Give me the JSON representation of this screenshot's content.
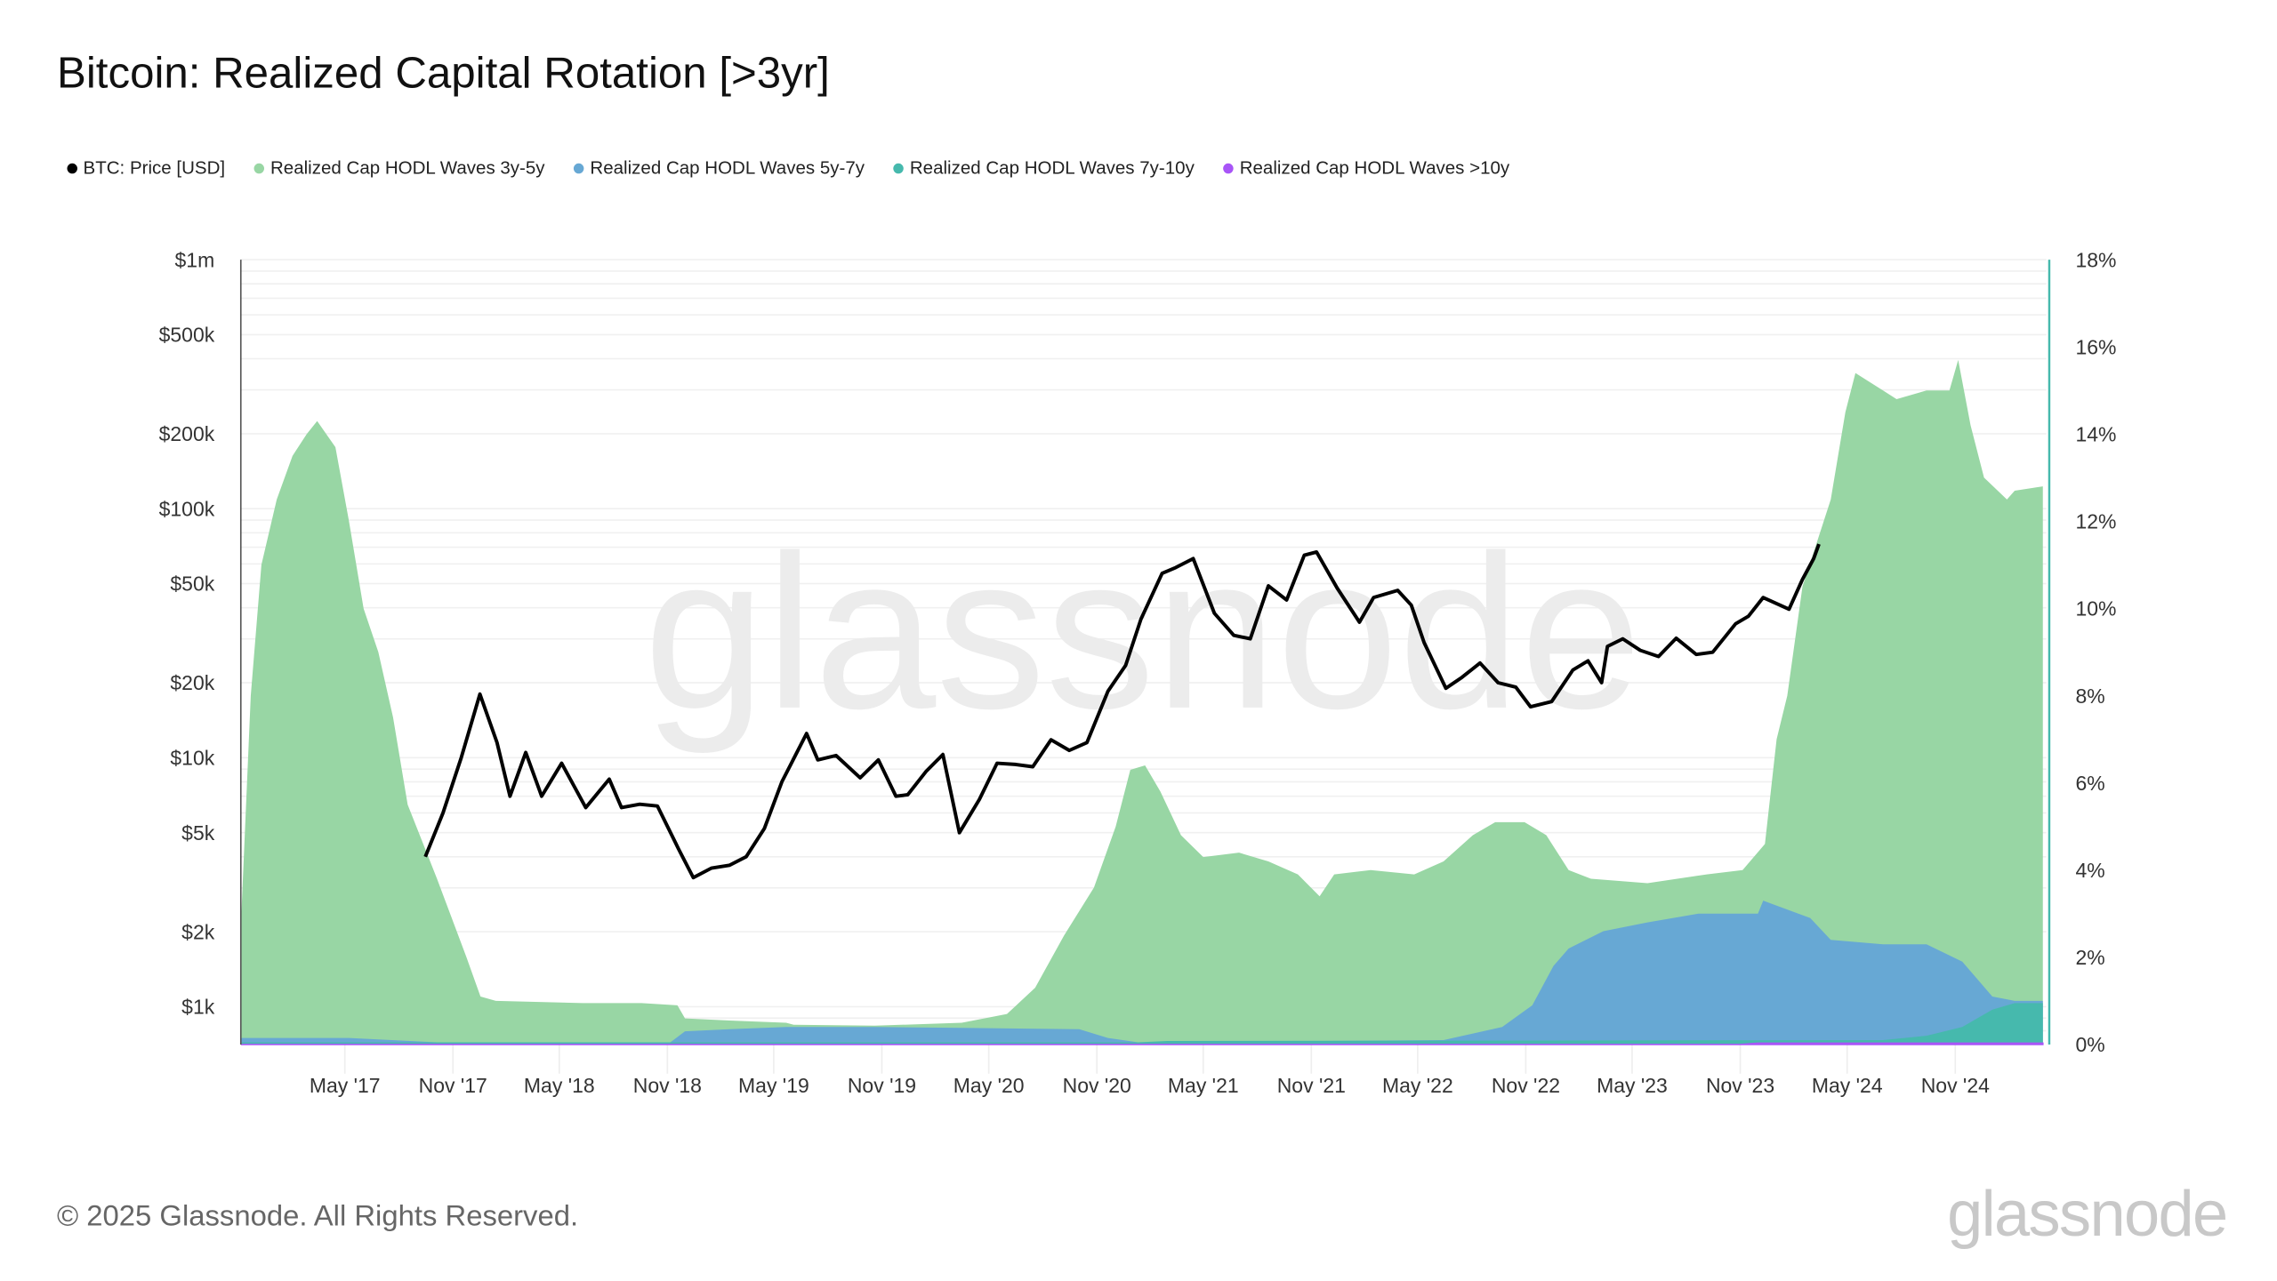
{
  "title": "Bitcoin: Realized Capital Rotation [>3yr]",
  "footer": "© 2025 Glassnode. All Rights Reserved.",
  "logo_text": "glassnode",
  "watermark": "glassnode",
  "chart_data": {
    "type": "area",
    "xlim": [
      "2016-11-05",
      "2025-04-05"
    ],
    "y_left": {
      "scale": "log",
      "range": [
        705,
        1000000
      ],
      "ticks": [
        1000000,
        500000,
        200000,
        100000,
        50000,
        20000,
        10000,
        5000,
        2000,
        1000
      ],
      "tick_labels": [
        "$1m",
        "$500k",
        "$200k",
        "$100k",
        "$50k",
        "$20k",
        "$10k",
        "$5k",
        "$2k",
        "$1k"
      ]
    },
    "y_right": {
      "scale": "linear",
      "range": [
        0,
        18
      ],
      "ticks": [
        18,
        16,
        14,
        12,
        10,
        8,
        6,
        4,
        2,
        0
      ],
      "tick_labels": [
        "18%",
        "16%",
        "14%",
        "12%",
        "10%",
        "8%",
        "6%",
        "4%",
        "2%",
        "0%"
      ]
    },
    "x_ticks": [
      {
        "date": "2017-05-01",
        "label": "May '17"
      },
      {
        "date": "2017-11-01",
        "label": "Nov '17"
      },
      {
        "date": "2018-05-01",
        "label": "May '18"
      },
      {
        "date": "2018-11-01",
        "label": "Nov '18"
      },
      {
        "date": "2019-05-01",
        "label": "May '19"
      },
      {
        "date": "2019-11-01",
        "label": "Nov '19"
      },
      {
        "date": "2020-05-01",
        "label": "May '20"
      },
      {
        "date": "2020-11-01",
        "label": "Nov '20"
      },
      {
        "date": "2021-05-01",
        "label": "May '21"
      },
      {
        "date": "2021-11-01",
        "label": "Nov '21"
      },
      {
        "date": "2022-05-01",
        "label": "May '22"
      },
      {
        "date": "2022-11-01",
        "label": "Nov '22"
      },
      {
        "date": "2023-05-01",
        "label": "May '23"
      },
      {
        "date": "2023-11-01",
        "label": "Nov '23"
      },
      {
        "date": "2024-05-01",
        "label": "May '24"
      },
      {
        "date": "2024-11-01",
        "label": "Nov '24"
      }
    ],
    "grid": true,
    "legend_placement": "top-left",
    "series": [
      {
        "name": "Realized Cap HODL Waves 3y-5y",
        "axis": "right",
        "color": "#98d6a4",
        "points": [
          [
            "2016-11-05",
            2.7
          ],
          [
            "2016-11-22",
            8
          ],
          [
            "2016-12-10",
            11
          ],
          [
            "2017-01-05",
            12.5
          ],
          [
            "2017-02-01",
            13.5
          ],
          [
            "2017-02-25",
            14
          ],
          [
            "2017-03-15",
            14.3
          ],
          [
            "2017-04-15",
            13.7
          ],
          [
            "2017-05-08",
            12
          ],
          [
            "2017-06-02",
            10
          ],
          [
            "2017-06-27",
            9
          ],
          [
            "2017-07-22",
            7.5
          ],
          [
            "2017-08-16",
            5.5
          ],
          [
            "2017-10-05",
            3.8
          ],
          [
            "2017-11-24",
            2
          ],
          [
            "2017-12-18",
            1.1
          ],
          [
            "2018-01-13",
            1.0
          ],
          [
            "2018-06-10",
            0.95
          ],
          [
            "2018-09-18",
            0.95
          ],
          [
            "2018-11-18",
            0.9
          ],
          [
            "2018-12-01",
            0.6
          ],
          [
            "2019-02-15",
            0.55
          ],
          [
            "2019-05-22",
            0.5
          ],
          [
            "2019-06-04",
            0.45
          ],
          [
            "2019-10-20",
            0.43
          ],
          [
            "2020-03-16",
            0.5
          ],
          [
            "2020-06-01",
            0.7
          ],
          [
            "2020-07-19",
            1.3
          ],
          [
            "2020-09-06",
            2.5
          ],
          [
            "2020-10-27",
            3.6
          ],
          [
            "2020-12-03",
            5.0
          ],
          [
            "2020-12-28",
            6.3
          ],
          [
            "2021-01-22",
            6.4
          ],
          [
            "2021-02-17",
            5.8
          ],
          [
            "2021-03-24",
            4.8
          ],
          [
            "2021-05-01",
            4.3
          ],
          [
            "2021-07-01",
            4.4
          ],
          [
            "2021-08-20",
            4.2
          ],
          [
            "2021-10-09",
            3.9
          ],
          [
            "2021-11-15",
            3.4
          ],
          [
            "2021-12-10",
            3.9
          ],
          [
            "2022-02-10",
            4.0
          ],
          [
            "2022-04-25",
            3.9
          ],
          [
            "2022-06-14",
            4.2
          ],
          [
            "2022-08-03",
            4.8
          ],
          [
            "2022-09-10",
            5.1
          ],
          [
            "2022-10-30",
            5.1
          ],
          [
            "2022-12-06",
            4.8
          ],
          [
            "2023-01-13",
            4.0
          ],
          [
            "2023-02-20",
            3.8
          ],
          [
            "2023-05-27",
            3.7
          ],
          [
            "2023-09-05",
            3.9
          ],
          [
            "2023-11-05",
            4.0
          ],
          [
            "2023-12-13",
            4.6
          ],
          [
            "2024-01-02",
            7.0
          ],
          [
            "2024-01-20",
            8.0
          ],
          [
            "2024-02-15",
            10.5
          ],
          [
            "2024-03-10",
            11.5
          ],
          [
            "2024-04-03",
            12.5
          ],
          [
            "2024-04-28",
            14.5
          ],
          [
            "2024-05-15",
            15.4
          ],
          [
            "2024-07-01",
            15.0
          ],
          [
            "2024-07-24",
            14.8
          ],
          [
            "2024-09-13",
            15.0
          ],
          [
            "2024-10-22",
            15.0
          ],
          [
            "2024-11-06",
            15.7
          ],
          [
            "2024-11-27",
            14.2
          ],
          [
            "2024-12-20",
            13.0
          ],
          [
            "2025-01-28",
            12.5
          ],
          [
            "2025-02-10",
            12.7
          ],
          [
            "2025-03-30",
            12.8
          ]
        ]
      },
      {
        "name": "Realized Cap HODL Waves 5y-7y",
        "axis": "right",
        "color": "#67a8d4",
        "points": [
          [
            "2016-11-05",
            0.15
          ],
          [
            "2017-05-08",
            0.15
          ],
          [
            "2017-10-05",
            0.05
          ],
          [
            "2018-11-06",
            0.05
          ],
          [
            "2018-12-01",
            0.3
          ],
          [
            "2019-02-15",
            0.35
          ],
          [
            "2019-05-22",
            0.4
          ],
          [
            "2019-10-20",
            0.4
          ],
          [
            "2020-03-16",
            0.38
          ],
          [
            "2020-10-02",
            0.35
          ],
          [
            "2020-11-20",
            0.15
          ],
          [
            "2021-01-10",
            0.05
          ],
          [
            "2022-06-14",
            0.1
          ],
          [
            "2022-09-22",
            0.4
          ],
          [
            "2022-11-12",
            0.9
          ],
          [
            "2022-12-18",
            1.8
          ],
          [
            "2023-01-13",
            2.2
          ],
          [
            "2023-03-13",
            2.6
          ],
          [
            "2023-05-27",
            2.8
          ],
          [
            "2023-08-22",
            3.0
          ],
          [
            "2023-11-05",
            3.0
          ],
          [
            "2023-12-01",
            3.0
          ],
          [
            "2023-12-10",
            3.3
          ],
          [
            "2024-02-28",
            2.9
          ],
          [
            "2024-04-03",
            2.4
          ],
          [
            "2024-07-01",
            2.3
          ],
          [
            "2024-09-13",
            2.3
          ],
          [
            "2024-11-13",
            1.9
          ],
          [
            "2025-01-03",
            1.1
          ],
          [
            "2025-02-10",
            1.0
          ],
          [
            "2025-03-30",
            1.0
          ]
        ]
      },
      {
        "name": "Realized Cap HODL Waves 7y-10y",
        "axis": "right",
        "color": "#46b9ad",
        "points": [
          [
            "2016-11-05",
            0.05
          ],
          [
            "2021-01-10",
            0.05
          ],
          [
            "2021-03-01",
            0.08
          ],
          [
            "2024-07-01",
            0.1
          ],
          [
            "2024-09-13",
            0.2
          ],
          [
            "2024-11-13",
            0.4
          ],
          [
            "2025-01-03",
            0.8
          ],
          [
            "2025-02-10",
            0.95
          ],
          [
            "2025-03-30",
            0.95
          ]
        ]
      },
      {
        "name": "Realized Cap HODL Waves >10y",
        "axis": "right",
        "color": "#a855f7",
        "points": [
          [
            "2016-11-05",
            0
          ],
          [
            "2023-11-01",
            0
          ],
          [
            "2023-12-01",
            0.03
          ],
          [
            "2025-03-30",
            0.03
          ]
        ]
      },
      {
        "name": "BTC: Price [USD]",
        "axis": "left",
        "type": "line",
        "color": "#000000",
        "points": [
          [
            "2017-09-15",
            4000
          ],
          [
            "2017-10-15",
            6000
          ],
          [
            "2017-11-15",
            10000
          ],
          [
            "2017-12-17",
            18000
          ],
          [
            "2018-01-15",
            11500
          ],
          [
            "2018-02-06",
            7000
          ],
          [
            "2018-03-05",
            10500
          ],
          [
            "2018-04-01",
            7000
          ],
          [
            "2018-05-05",
            9500
          ],
          [
            "2018-06-15",
            6300
          ],
          [
            "2018-07-25",
            8200
          ],
          [
            "2018-08-15",
            6300
          ],
          [
            "2018-09-15",
            6500
          ],
          [
            "2018-10-15",
            6400
          ],
          [
            "2018-11-20",
            4300
          ],
          [
            "2018-12-15",
            3300
          ],
          [
            "2019-01-15",
            3600
          ],
          [
            "2019-02-15",
            3700
          ],
          [
            "2019-03-15",
            4000
          ],
          [
            "2019-04-15",
            5200
          ],
          [
            "2019-05-15",
            8000
          ],
          [
            "2019-06-26",
            12500
          ],
          [
            "2019-07-15",
            9800
          ],
          [
            "2019-08-15",
            10200
          ],
          [
            "2019-09-25",
            8300
          ],
          [
            "2019-10-26",
            9800
          ],
          [
            "2019-11-25",
            7000
          ],
          [
            "2019-12-15",
            7100
          ],
          [
            "2020-01-15",
            8800
          ],
          [
            "2020-02-13",
            10300
          ],
          [
            "2020-03-12",
            5000
          ],
          [
            "2020-04-15",
            6800
          ],
          [
            "2020-05-15",
            9500
          ],
          [
            "2020-06-15",
            9400
          ],
          [
            "2020-07-15",
            9200
          ],
          [
            "2020-08-15",
            11800
          ],
          [
            "2020-09-15",
            10700
          ],
          [
            "2020-10-15",
            11500
          ],
          [
            "2020-11-20",
            18500
          ],
          [
            "2020-12-20",
            23500
          ],
          [
            "2021-01-15",
            36000
          ],
          [
            "2021-02-20",
            55000
          ],
          [
            "2021-03-15",
            58000
          ],
          [
            "2021-04-14",
            63000
          ],
          [
            "2021-05-20",
            38000
          ],
          [
            "2021-06-22",
            31000
          ],
          [
            "2021-07-20",
            30000
          ],
          [
            "2021-08-20",
            49000
          ],
          [
            "2021-09-20",
            43000
          ],
          [
            "2021-10-20",
            65000
          ],
          [
            "2021-11-10",
            67000
          ],
          [
            "2021-12-15",
            48000
          ],
          [
            "2022-01-22",
            35000
          ],
          [
            "2022-02-15",
            44000
          ],
          [
            "2022-03-28",
            47000
          ],
          [
            "2022-04-20",
            41000
          ],
          [
            "2022-05-12",
            29000
          ],
          [
            "2022-06-18",
            19000
          ],
          [
            "2022-07-15",
            21000
          ],
          [
            "2022-08-15",
            24000
          ],
          [
            "2022-09-15",
            20000
          ],
          [
            "2022-10-15",
            19200
          ],
          [
            "2022-11-09",
            16000
          ],
          [
            "2022-12-15",
            16800
          ],
          [
            "2023-01-20",
            22500
          ],
          [
            "2023-02-15",
            24500
          ],
          [
            "2023-03-10",
            20000
          ],
          [
            "2023-03-20",
            28000
          ],
          [
            "2023-04-15",
            30000
          ],
          [
            "2023-05-15",
            27000
          ],
          [
            "2023-06-15",
            25500
          ],
          [
            "2023-07-15",
            30200
          ],
          [
            "2023-08-18",
            26000
          ],
          [
            "2023-09-15",
            26500
          ],
          [
            "2023-10-24",
            34500
          ],
          [
            "2023-11-15",
            37000
          ],
          [
            "2023-12-10",
            44000
          ],
          [
            "2024-01-23",
            39500
          ],
          [
            "2024-02-15",
            52000
          ],
          [
            "2024-03-05",
            63000
          ],
          [
            "2024-03-14",
            72000
          ]
        ]
      }
    ]
  },
  "legend": [
    {
      "label": "BTC: Price [USD]",
      "color": "#000000"
    },
    {
      "label": "Realized Cap HODL Waves 3y-5y",
      "color": "#98d6a4"
    },
    {
      "label": "Realized Cap HODL Waves 5y-7y",
      "color": "#67a8d4"
    },
    {
      "label": "Realized Cap HODL Waves 7y-10y",
      "color": "#46b9ad"
    },
    {
      "label": "Realized Cap HODL Waves >10y",
      "color": "#a855f7"
    }
  ]
}
